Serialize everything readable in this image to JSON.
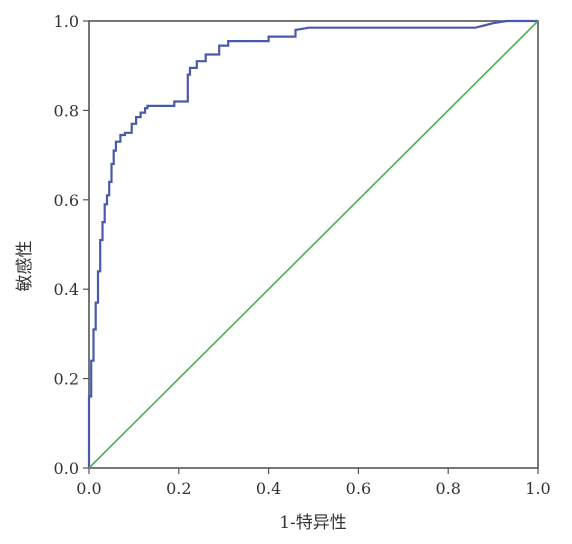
{
  "chart_data": {
    "type": "line",
    "title": "",
    "xlabel": "1-特异性",
    "ylabel": "敏感性",
    "xlim": [
      0,
      1
    ],
    "ylim": [
      0,
      1
    ],
    "x_ticks": [
      "0.0",
      "0.2",
      "0.4",
      "0.6",
      "0.8",
      "1.0"
    ],
    "y_ticks": [
      "0.0",
      "0.2",
      "0.4",
      "0.6",
      "0.8",
      "1.0"
    ],
    "grid": false,
    "legend": "none",
    "series": [
      {
        "color": "#4a5aa8",
        "x": [
          0,
          0,
          0.005,
          0.005,
          0.01,
          0.01,
          0.015,
          0.015,
          0.02,
          0.02,
          0.025,
          0.025,
          0.03,
          0.03,
          0.035,
          0.035,
          0.04,
          0.04,
          0.045,
          0.045,
          0.05,
          0.05,
          0.055,
          0.055,
          0.06,
          0.06,
          0.07,
          0.07,
          0.08,
          0.08,
          0.095,
          0.095,
          0.105,
          0.105,
          0.115,
          0.115,
          0.125,
          0.125,
          0.13,
          0.13,
          0.15,
          0.19,
          0.19,
          0.22,
          0.22,
          0.225,
          0.225,
          0.24,
          0.24,
          0.26,
          0.26,
          0.29,
          0.29,
          0.31,
          0.31,
          0.34,
          0.4,
          0.4,
          0.46,
          0.46,
          0.49,
          0.86,
          0.88,
          0.9,
          0.93,
          1.0
        ],
        "y": [
          0,
          0.16,
          0.16,
          0.24,
          0.24,
          0.31,
          0.31,
          0.37,
          0.37,
          0.44,
          0.44,
          0.51,
          0.51,
          0.55,
          0.55,
          0.59,
          0.59,
          0.61,
          0.61,
          0.64,
          0.64,
          0.68,
          0.68,
          0.71,
          0.71,
          0.73,
          0.73,
          0.745,
          0.745,
          0.75,
          0.75,
          0.77,
          0.77,
          0.785,
          0.785,
          0.795,
          0.795,
          0.805,
          0.805,
          0.81,
          0.81,
          0.81,
          0.82,
          0.82,
          0.88,
          0.88,
          0.895,
          0.895,
          0.91,
          0.91,
          0.925,
          0.925,
          0.945,
          0.945,
          0.955,
          0.955,
          0.955,
          0.965,
          0.965,
          0.98,
          0.985,
          0.985,
          0.99,
          0.995,
          1.0,
          1.0
        ]
      },
      {
        "color": "#4caf50",
        "x": [
          0,
          1
        ],
        "y": [
          0,
          1
        ]
      }
    ]
  }
}
